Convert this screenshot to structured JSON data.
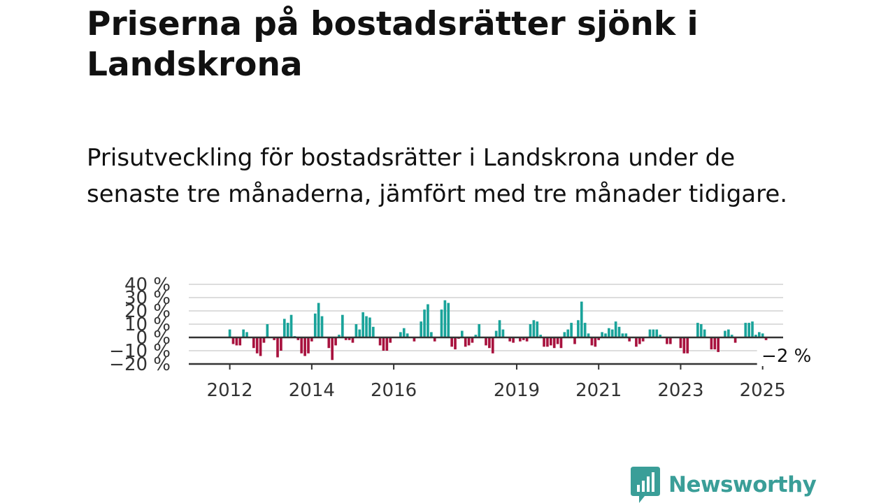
{
  "header": {
    "title": "Priserna på bostadsrätter sjönk i Landskrona",
    "subtitle": "Prisutveckling för bostadsrätter i Landskrona under de senaste tre månaderna, jämfört med tre månader tidigare."
  },
  "logo": {
    "text": "Newsworthy",
    "icon": "newsworthy-chart-bubble-icon"
  },
  "colors": {
    "positive": "#1aa39a",
    "negative": "#a8123e",
    "grid": "#dddddd",
    "axis": "#333333",
    "brand": "#3a9e98"
  },
  "chart_data": {
    "type": "bar",
    "title": "",
    "xlabel": "",
    "ylabel": "",
    "ylim": [
      -20,
      40
    ],
    "y_ticks": [
      {
        "value": 40,
        "label": "40 %"
      },
      {
        "value": 30,
        "label": "30 %"
      },
      {
        "value": 20,
        "label": "20 %"
      },
      {
        "value": 10,
        "label": "10 %"
      },
      {
        "value": 0,
        "label": "0 %"
      },
      {
        "value": -10,
        "label": "−10 %"
      },
      {
        "value": -20,
        "label": "−20 %"
      }
    ],
    "x_start": "2011-01",
    "x_end": "2025-07",
    "x_ticks": [
      {
        "date": "2012-01",
        "label": "2012"
      },
      {
        "date": "2014-01",
        "label": "2014"
      },
      {
        "date": "2016-01",
        "label": "2016"
      },
      {
        "date": "2019-01",
        "label": "2019"
      },
      {
        "date": "2021-01",
        "label": "2021"
      },
      {
        "date": "2023-01",
        "label": "2023"
      },
      {
        "date": "2025-01",
        "label": "2025"
      }
    ],
    "grid": true,
    "annotation": {
      "label": "−2 %",
      "date": "2025-01"
    },
    "series": [
      {
        "start": "2012-01",
        "values": [
          6,
          -5,
          -6,
          -6,
          6,
          4,
          0,
          -8,
          -12,
          -14,
          -4,
          10,
          0,
          -2,
          -15,
          -10,
          14,
          11,
          17,
          1,
          -2,
          -12,
          -14,
          -12,
          -3,
          18,
          26,
          16,
          0,
          -8,
          -17,
          -6,
          2,
          17,
          -2,
          -2,
          -4,
          10,
          6,
          19,
          16,
          15,
          8,
          0,
          -6,
          -10,
          -10,
          -4,
          0,
          0,
          4,
          7,
          3,
          0,
          -3,
          0,
          12,
          21,
          25,
          4,
          -3,
          0,
          21,
          28,
          26,
          -7,
          -9,
          -1,
          5,
          -7,
          -6,
          -4,
          2,
          10,
          0,
          -6,
          -8,
          -12,
          5,
          13,
          6,
          0,
          -3,
          -4,
          0,
          -3,
          -2,
          -3,
          10,
          13,
          12,
          2,
          -7,
          -7,
          -6,
          -8,
          -5,
          -8,
          4,
          6,
          11,
          -5,
          13,
          27,
          11,
          3,
          -6,
          -7,
          -2,
          4,
          3,
          7,
          6,
          12,
          8,
          3,
          3,
          -3,
          0,
          -7,
          -5,
          -3,
          0,
          6,
          6,
          6,
          2,
          0,
          -5,
          -5,
          0,
          0,
          -8,
          -12,
          -12,
          0,
          0,
          11,
          10,
          6,
          0,
          -9,
          -9,
          -11,
          0,
          5,
          6,
          2,
          -4,
          0,
          0,
          11,
          11,
          12,
          2,
          4,
          3,
          -2
        ]
      }
    ]
  }
}
